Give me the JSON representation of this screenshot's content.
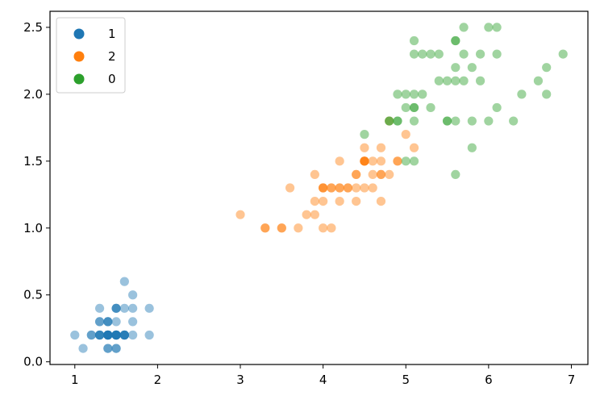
{
  "chart_data": {
    "type": "scatter",
    "title": "",
    "xlabel": "",
    "ylabel": "",
    "xlim": [
      0.7,
      7.2
    ],
    "ylim": [
      -0.02,
      2.62
    ],
    "xticks": [
      1,
      2,
      3,
      4,
      5,
      6,
      7
    ],
    "yticks": [
      0.0,
      0.5,
      1.0,
      1.5,
      2.0,
      2.5
    ],
    "xtick_labels": [
      "1",
      "2",
      "3",
      "4",
      "5",
      "6",
      "7"
    ],
    "ytick_labels": [
      "0.0",
      "0.5",
      "1.0",
      "1.5",
      "2.0",
      "2.5"
    ],
    "grid": false,
    "legend_position": "top-left",
    "point_opacity": 0.45,
    "series": [
      {
        "name": "1",
        "color": "#1f77b4",
        "points": [
          [
            1.4,
            0.2
          ],
          [
            1.4,
            0.2
          ],
          [
            1.3,
            0.2
          ],
          [
            1.5,
            0.2
          ],
          [
            1.4,
            0.2
          ],
          [
            1.7,
            0.4
          ],
          [
            1.4,
            0.3
          ],
          [
            1.5,
            0.2
          ],
          [
            1.4,
            0.2
          ],
          [
            1.5,
            0.1
          ],
          [
            1.5,
            0.2
          ],
          [
            1.6,
            0.2
          ],
          [
            1.4,
            0.1
          ],
          [
            1.1,
            0.1
          ],
          [
            1.2,
            0.2
          ],
          [
            1.5,
            0.4
          ],
          [
            1.3,
            0.4
          ],
          [
            1.4,
            0.3
          ],
          [
            1.7,
            0.3
          ],
          [
            1.5,
            0.3
          ],
          [
            1.7,
            0.2
          ],
          [
            1.5,
            0.4
          ],
          [
            1.0,
            0.2
          ],
          [
            1.7,
            0.5
          ],
          [
            1.9,
            0.2
          ],
          [
            1.6,
            0.2
          ],
          [
            1.6,
            0.4
          ],
          [
            1.5,
            0.2
          ],
          [
            1.4,
            0.2
          ],
          [
            1.6,
            0.2
          ],
          [
            1.6,
            0.2
          ],
          [
            1.5,
            0.4
          ],
          [
            1.5,
            0.1
          ],
          [
            1.4,
            0.2
          ],
          [
            1.5,
            0.2
          ],
          [
            1.2,
            0.2
          ],
          [
            1.3,
            0.2
          ],
          [
            1.4,
            0.1
          ],
          [
            1.3,
            0.2
          ],
          [
            1.5,
            0.2
          ],
          [
            1.3,
            0.3
          ],
          [
            1.3,
            0.3
          ],
          [
            1.3,
            0.2
          ],
          [
            1.6,
            0.6
          ],
          [
            1.9,
            0.4
          ],
          [
            1.4,
            0.3
          ],
          [
            1.6,
            0.2
          ],
          [
            1.4,
            0.2
          ],
          [
            1.5,
            0.2
          ],
          [
            1.4,
            0.2
          ]
        ]
      },
      {
        "name": "2",
        "color": "#ff7f0e",
        "points": [
          [
            4.7,
            1.4
          ],
          [
            4.5,
            1.5
          ],
          [
            4.9,
            1.5
          ],
          [
            4.0,
            1.3
          ],
          [
            4.6,
            1.5
          ],
          [
            4.5,
            1.3
          ],
          [
            4.7,
            1.6
          ],
          [
            3.3,
            1.0
          ],
          [
            4.6,
            1.3
          ],
          [
            3.9,
            1.4
          ],
          [
            3.5,
            1.0
          ],
          [
            4.2,
            1.5
          ],
          [
            4.0,
            1.0
          ],
          [
            4.7,
            1.4
          ],
          [
            3.6,
            1.3
          ],
          [
            4.4,
            1.4
          ],
          [
            4.5,
            1.5
          ],
          [
            4.1,
            1.0
          ],
          [
            4.5,
            1.5
          ],
          [
            3.9,
            1.1
          ],
          [
            4.8,
            1.8
          ],
          [
            4.0,
            1.3
          ],
          [
            4.9,
            1.5
          ],
          [
            4.7,
            1.2
          ],
          [
            4.3,
            1.3
          ],
          [
            4.4,
            1.4
          ],
          [
            4.8,
            1.4
          ],
          [
            5.0,
            1.7
          ],
          [
            4.5,
            1.5
          ],
          [
            3.5,
            1.0
          ],
          [
            3.8,
            1.1
          ],
          [
            3.7,
            1.0
          ],
          [
            3.9,
            1.2
          ],
          [
            5.1,
            1.6
          ],
          [
            4.5,
            1.5
          ],
          [
            4.5,
            1.6
          ],
          [
            4.7,
            1.5
          ],
          [
            4.4,
            1.3
          ],
          [
            4.1,
            1.3
          ],
          [
            4.0,
            1.3
          ],
          [
            4.4,
            1.2
          ],
          [
            4.6,
            1.4
          ],
          [
            4.0,
            1.2
          ],
          [
            3.3,
            1.0
          ],
          [
            4.2,
            1.3
          ],
          [
            4.2,
            1.2
          ],
          [
            4.2,
            1.3
          ],
          [
            4.3,
            1.3
          ],
          [
            3.0,
            1.1
          ],
          [
            4.1,
            1.3
          ]
        ]
      },
      {
        "name": "0",
        "color": "#2ca02c",
        "points": [
          [
            6.0,
            2.5
          ],
          [
            5.1,
            1.9
          ],
          [
            5.9,
            2.1
          ],
          [
            5.6,
            1.8
          ],
          [
            5.8,
            2.2
          ],
          [
            6.6,
            2.1
          ],
          [
            4.5,
            1.7
          ],
          [
            6.3,
            1.8
          ],
          [
            5.8,
            1.8
          ],
          [
            6.1,
            2.5
          ],
          [
            5.1,
            2.0
          ],
          [
            5.3,
            1.9
          ],
          [
            5.5,
            2.1
          ],
          [
            5.0,
            2.0
          ],
          [
            5.1,
            2.4
          ],
          [
            5.3,
            2.3
          ],
          [
            5.5,
            1.8
          ],
          [
            6.7,
            2.2
          ],
          [
            6.9,
            2.3
          ],
          [
            5.0,
            1.5
          ],
          [
            5.7,
            2.3
          ],
          [
            4.9,
            2.0
          ],
          [
            6.7,
            2.0
          ],
          [
            4.9,
            1.8
          ],
          [
            5.7,
            2.1
          ],
          [
            6.0,
            1.8
          ],
          [
            4.8,
            1.8
          ],
          [
            4.9,
            1.8
          ],
          [
            5.6,
            2.1
          ],
          [
            5.8,
            1.6
          ],
          [
            6.1,
            1.9
          ],
          [
            6.4,
            2.0
          ],
          [
            5.6,
            2.2
          ],
          [
            5.1,
            1.5
          ],
          [
            5.6,
            1.4
          ],
          [
            6.1,
            2.3
          ],
          [
            5.6,
            2.4
          ],
          [
            5.5,
            1.8
          ],
          [
            4.8,
            1.8
          ],
          [
            5.4,
            2.1
          ],
          [
            5.6,
            2.4
          ],
          [
            5.1,
            2.3
          ],
          [
            5.1,
            1.9
          ],
          [
            5.9,
            2.3
          ],
          [
            5.7,
            2.5
          ],
          [
            5.2,
            2.3
          ],
          [
            5.0,
            1.9
          ],
          [
            5.2,
            2.0
          ],
          [
            5.4,
            2.3
          ],
          [
            5.1,
            1.8
          ]
        ]
      }
    ]
  }
}
